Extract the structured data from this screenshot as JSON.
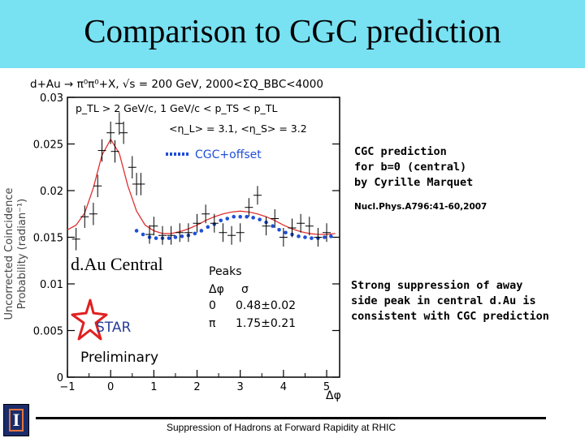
{
  "slide": {
    "title": "Comparison to CGC prediction",
    "footer": "Suppression of Hadrons at Forward Rapidity at RHIC"
  },
  "logo": {
    "letter": "I"
  },
  "notes": {
    "cgc_line1": "CGC prediction",
    "cgc_line2": "for b=0 (central)",
    "cgc_line3": "by Cyrille Marquet",
    "reference": "Nucl.Phys.A796:41-60,2007",
    "suppression_line1": "Strong suppression of away",
    "suppression_line2": "side peak in central d.Au is",
    "suppression_line3": "consistent with CGC prediction"
  },
  "chart_data": {
    "type": "scatter",
    "header": "d+Au  →  π⁰π⁰+X, √s = 200 GeV, 2000<ΣQ_BBC<4000",
    "ylabel_line1": "Uncorrected Coincidence",
    "ylabel_line2": "Probability (radian⁻¹)",
    "xlabel": "Δφ",
    "cuts_line1": "p_TL > 2 GeV/c,  1 GeV/c < p_TS < p_TL",
    "cuts_line2": "<η_L> = 3.1,  <η_S> = 3.2",
    "legend": "CGC+offset",
    "label_central": "d.Au Central",
    "label_star": "STAR",
    "label_preliminary": "Preliminary",
    "peaks_table": {
      "title": "Peaks",
      "col1": "Δφ",
      "col2": "σ",
      "rows": [
        {
          "pos": "0",
          "sigma": "0.48±0.02"
        },
        {
          "pos": "π",
          "sigma": "1.75±0.21"
        }
      ]
    },
    "xlim": [
      -1.0,
      5.3
    ],
    "ylim": [
      0.0,
      0.03
    ],
    "x_ticks": [
      -1,
      0,
      1,
      2,
      3,
      4,
      5
    ],
    "x_tick_labels": [
      "−1",
      "0",
      "1",
      "2",
      "3",
      "4",
      "5"
    ],
    "y_ticks": [
      0,
      0.005,
      0.01,
      0.015,
      0.02,
      0.025,
      0.03
    ],
    "y_tick_labels": [
      "0",
      "0.005",
      "0.01",
      "0.015",
      "0.02",
      "0.025",
      "0.03"
    ],
    "series": [
      {
        "name": "data",
        "x": [
          -0.8,
          -0.6,
          -0.4,
          -0.3,
          -0.2,
          0.0,
          0.1,
          0.2,
          0.3,
          0.5,
          0.6,
          0.7,
          0.9,
          1.0,
          1.2,
          1.4,
          1.6,
          1.8,
          2.0,
          2.2,
          2.4,
          2.6,
          2.8,
          3.0,
          3.2,
          3.4,
          3.6,
          3.8,
          4.0,
          4.2,
          4.4,
          4.6,
          4.8,
          5.0
        ],
        "y": [
          0.0148,
          0.0172,
          0.0175,
          0.0205,
          0.0243,
          0.0262,
          0.0242,
          0.0272,
          0.0262,
          0.0225,
          0.0207,
          0.0207,
          0.0153,
          0.0162,
          0.0152,
          0.0152,
          0.0155,
          0.0155,
          0.0165,
          0.0175,
          0.0165,
          0.0155,
          0.0152,
          0.0155,
          0.0182,
          0.0195,
          0.0162,
          0.017,
          0.015,
          0.016,
          0.0165,
          0.0162,
          0.015,
          0.0155
        ],
        "yerr": [
          0.0012,
          0.0012,
          0.0012,
          0.0012,
          0.0012,
          0.0012,
          0.0012,
          0.0012,
          0.0012,
          0.0012,
          0.0012,
          0.0012,
          0.001,
          0.001,
          0.001,
          0.001,
          0.001,
          0.001,
          0.001,
          0.001,
          0.001,
          0.001,
          0.001,
          0.001,
          0.001,
          0.001,
          0.001,
          0.001,
          0.001,
          0.001,
          0.001,
          0.001,
          0.001,
          0.001
        ]
      },
      {
        "name": "CGC+offset",
        "x": [
          0.6,
          0.75,
          0.9,
          1.05,
          1.2,
          1.35,
          1.5,
          1.65,
          1.8,
          1.95,
          2.1,
          2.25,
          2.4,
          2.55,
          2.7,
          2.85,
          3.0,
          3.15,
          3.3,
          3.45,
          3.6,
          3.75,
          3.9,
          4.05,
          4.2,
          4.35,
          4.5,
          4.65,
          4.8,
          4.95,
          5.1
        ],
        "y": [
          0.0157,
          0.0153,
          0.015,
          0.0149,
          0.0149,
          0.0149,
          0.015,
          0.0151,
          0.0152,
          0.0154,
          0.0157,
          0.0161,
          0.0164,
          0.0168,
          0.017,
          0.0172,
          0.0172,
          0.0172,
          0.0171,
          0.0169,
          0.0166,
          0.0162,
          0.0158,
          0.0155,
          0.0153,
          0.0151,
          0.015,
          0.0149,
          0.0149,
          0.015,
          0.0151
        ]
      },
      {
        "name": "fit",
        "x": [
          -1.0,
          -0.8,
          -0.6,
          -0.4,
          -0.2,
          0.0,
          0.2,
          0.4,
          0.6,
          0.8,
          1.0,
          1.2,
          1.4,
          1.6,
          1.8,
          2.0,
          2.2,
          2.4,
          2.6,
          2.8,
          3.0,
          3.2,
          3.4,
          3.6,
          3.8,
          4.0,
          4.2,
          4.4,
          4.6,
          4.8,
          5.0,
          5.2
        ],
        "y": [
          0.0158,
          0.0163,
          0.0176,
          0.0203,
          0.0238,
          0.0255,
          0.024,
          0.0205,
          0.0178,
          0.0163,
          0.0157,
          0.0154,
          0.0154,
          0.0156,
          0.0159,
          0.0163,
          0.0168,
          0.0172,
          0.0175,
          0.0177,
          0.0178,
          0.0177,
          0.0175,
          0.0172,
          0.0168,
          0.0163,
          0.0159,
          0.0156,
          0.0154,
          0.0153,
          0.0153,
          0.0154
        ]
      }
    ]
  }
}
